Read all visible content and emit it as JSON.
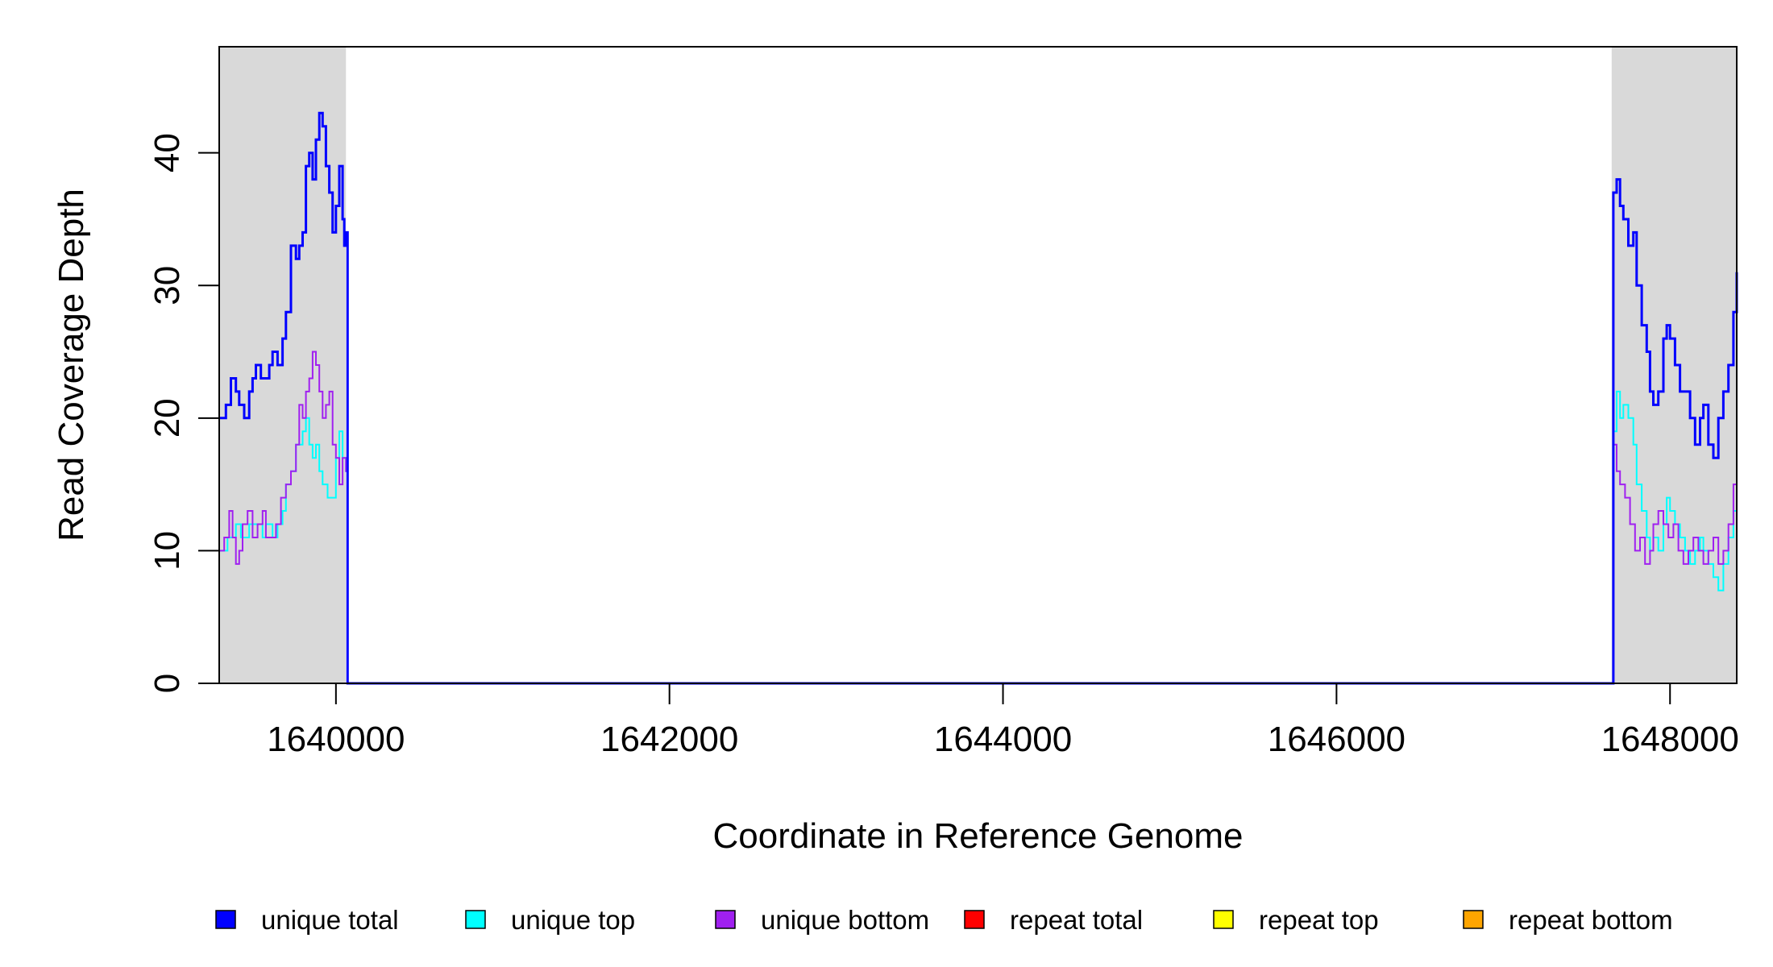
{
  "chart_data": {
    "type": "line",
    "title": "",
    "xlabel": "Coordinate in Reference Genome",
    "ylabel": "Read Coverage Depth",
    "xlim": [
      1639300,
      1648400
    ],
    "ylim": [
      0,
      48
    ],
    "xticks": [
      1640000,
      1642000,
      1644000,
      1646000,
      1648000
    ],
    "xtick_labels": [
      "1640000",
      "1642000",
      "1644000",
      "1646000",
      "1648000"
    ],
    "yticks": [
      0,
      10,
      20,
      30,
      40
    ],
    "ytick_labels": [
      "0",
      "10",
      "20",
      "30",
      "40"
    ],
    "grid": false,
    "legend_position": "bottom",
    "shaded_regions": [
      {
        "x0": 1639300,
        "x1": 1640060,
        "color": "#d9d9d9"
      },
      {
        "x0": 1647650,
        "x1": 1648400,
        "color": "#d9d9d9"
      }
    ],
    "series": [
      {
        "name": "unique total",
        "color": "#0000ff",
        "x": [
          1639300,
          1639340,
          1639370,
          1639400,
          1639420,
          1639450,
          1639480,
          1639500,
          1639520,
          1639550,
          1639580,
          1639600,
          1639620,
          1639650,
          1639680,
          1639700,
          1639730,
          1639760,
          1639780,
          1639800,
          1639820,
          1639840,
          1639860,
          1639880,
          1639900,
          1639920,
          1639940,
          1639960,
          1639980,
          1640000,
          1640020,
          1640040,
          1640050,
          1640060,
          1640070,
          1647650,
          1647660,
          1647680,
          1647700,
          1647720,
          1647750,
          1647780,
          1647800,
          1647830,
          1647860,
          1647880,
          1647900,
          1647930,
          1647960,
          1647980,
          1648000,
          1648030,
          1648060,
          1648090,
          1648120,
          1648150,
          1648180,
          1648200,
          1648230,
          1648260,
          1648290,
          1648320,
          1648350,
          1648380,
          1648400
        ],
        "y": [
          20,
          21,
          23,
          22,
          21,
          20,
          22,
          23,
          24,
          23,
          23,
          24,
          25,
          24,
          26,
          28,
          33,
          32,
          33,
          34,
          39,
          40,
          38,
          41,
          43,
          42,
          39,
          37,
          34,
          36,
          39,
          35,
          33,
          34,
          0,
          0,
          37,
          38,
          36,
          35,
          33,
          34,
          30,
          27,
          25,
          22,
          21,
          22,
          26,
          27,
          26,
          24,
          22,
          22,
          20,
          18,
          20,
          21,
          18,
          17,
          20,
          22,
          24,
          28,
          31
        ]
      },
      {
        "name": "unique top",
        "color": "#00ffff",
        "x": [
          1639300,
          1639350,
          1639380,
          1639400,
          1639430,
          1639450,
          1639480,
          1639520,
          1639560,
          1639580,
          1639620,
          1639650,
          1639680,
          1639700,
          1639730,
          1639760,
          1639780,
          1639800,
          1639820,
          1639840,
          1639860,
          1639880,
          1639900,
          1639920,
          1639950,
          1639980,
          1640000,
          1640020,
          1640040,
          1640060,
          1640070,
          1647650,
          1647660,
          1647680,
          1647700,
          1647720,
          1647750,
          1647780,
          1647800,
          1647830,
          1647860,
          1647880,
          1647900,
          1647930,
          1647960,
          1647980,
          1648000,
          1648030,
          1648060,
          1648090,
          1648120,
          1648150,
          1648180,
          1648200,
          1648230,
          1648260,
          1648290,
          1648320,
          1648350,
          1648380,
          1648400
        ],
        "y": [
          10,
          11,
          11,
          12,
          11,
          11,
          12,
          12,
          11,
          12,
          11,
          12,
          13,
          15,
          16,
          18,
          18,
          19,
          20,
          18,
          17,
          18,
          16,
          15,
          14,
          14,
          17,
          19,
          17,
          16,
          0,
          0,
          19,
          22,
          20,
          21,
          20,
          18,
          15,
          13,
          11,
          10,
          11,
          10,
          12,
          14,
          13,
          12,
          11,
          10,
          9,
          10,
          11,
          10,
          9,
          8,
          7,
          9,
          11,
          13,
          15
        ]
      },
      {
        "name": "unique bottom",
        "color": "#a020f0",
        "x": [
          1639300,
          1639330,
          1639360,
          1639380,
          1639400,
          1639420,
          1639440,
          1639470,
          1639500,
          1639530,
          1639560,
          1639580,
          1639610,
          1639640,
          1639670,
          1639700,
          1639730,
          1639760,
          1639780,
          1639800,
          1639820,
          1639840,
          1639860,
          1639880,
          1639900,
          1639920,
          1639940,
          1639960,
          1639980,
          1640000,
          1640020,
          1640040,
          1640060,
          1640070,
          1647650,
          1647660,
          1647680,
          1647700,
          1647730,
          1647760,
          1647790,
          1647820,
          1647850,
          1647880,
          1647900,
          1647930,
          1647960,
          1647990,
          1648020,
          1648050,
          1648080,
          1648110,
          1648140,
          1648170,
          1648200,
          1648230,
          1648260,
          1648290,
          1648320,
          1648350,
          1648380,
          1648400
        ],
        "y": [
          10,
          11,
          13,
          11,
          9,
          10,
          12,
          13,
          11,
          12,
          13,
          11,
          11,
          12,
          14,
          15,
          16,
          18,
          21,
          20,
          22,
          23,
          25,
          24,
          22,
          20,
          21,
          22,
          18,
          17,
          15,
          17,
          16,
          0,
          0,
          18,
          16,
          15,
          14,
          12,
          10,
          11,
          9,
          10,
          12,
          13,
          12,
          11,
          12,
          10,
          9,
          10,
          11,
          10,
          9,
          10,
          11,
          9,
          10,
          12,
          15,
          17
        ]
      },
      {
        "name": "repeat total",
        "color": "#ff0000",
        "x": [
          1639300,
          1648400
        ],
        "y": [
          0,
          0
        ]
      },
      {
        "name": "repeat top",
        "color": "#ffff00",
        "x": [
          1639300,
          1648400
        ],
        "y": [
          0,
          0
        ]
      },
      {
        "name": "repeat bottom",
        "color": "#ffa500",
        "x": [
          1639300,
          1648400
        ],
        "y": [
          0,
          0
        ]
      }
    ]
  }
}
